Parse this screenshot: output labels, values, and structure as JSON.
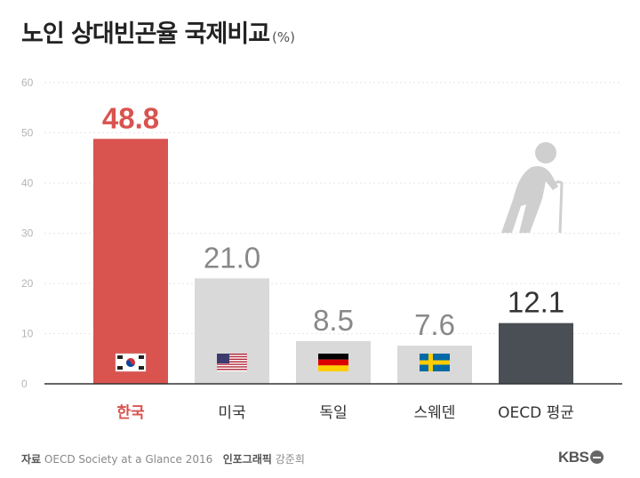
{
  "title": "노인 상대빈곤율 국제비교",
  "unit": "(%)",
  "chart_data": {
    "type": "bar",
    "categories": [
      "한국",
      "미국",
      "독일",
      "스웨덴",
      "OECD 평균"
    ],
    "values": [
      48.8,
      21.0,
      8.5,
      7.6,
      12.1
    ],
    "value_labels": [
      "48.8",
      "21.0",
      "8.5",
      "7.6",
      "12.1"
    ],
    "ylim": [
      0,
      60
    ],
    "yticks": [
      "0",
      "10",
      "20",
      "30",
      "40",
      "50",
      "60"
    ],
    "grid": true,
    "colors": {
      "highlight": "#d9534f",
      "default": "#d9d9d9",
      "average": "#4a4f55",
      "value_default": "#888888",
      "value_average": "#333333"
    },
    "flags": [
      "korea-flag-icon",
      "usa-flag-icon",
      "germany-flag-icon",
      "sweden-flag-icon"
    ],
    "decoration": "elderly-person-with-cane-icon"
  },
  "footer": {
    "source_label": "자료",
    "source_text": "OECD Society at a Glance 2016",
    "credit_label": "인포그래픽",
    "credit_name": "강준희"
  },
  "brand": "KBS"
}
